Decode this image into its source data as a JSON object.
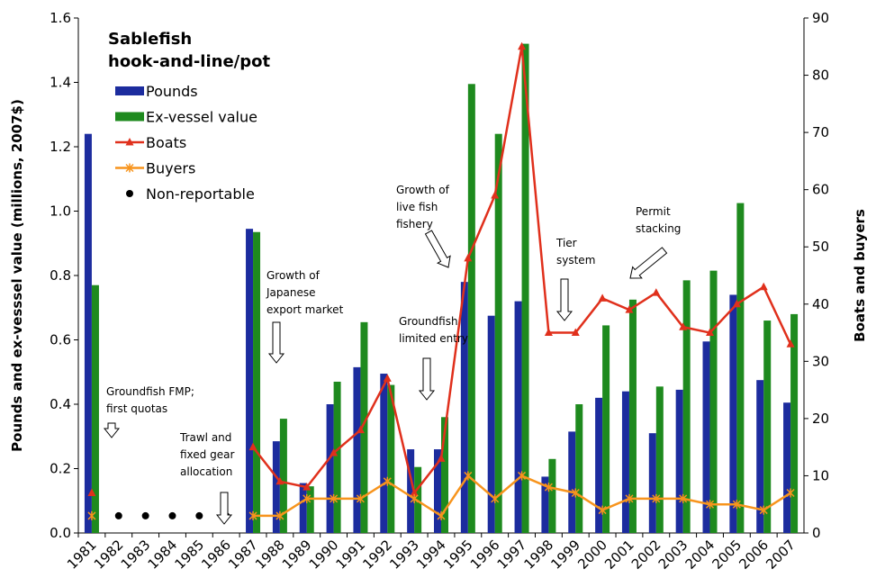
{
  "chart_data": {
    "type": "bar",
    "title": [
      "Sablefish",
      "hook-and-line/pot"
    ],
    "y_label": "Pounds and ex-vesssel value (millions, 2007$)",
    "y2_label": "Boats and buyers",
    "categories": [
      "1981",
      "1982",
      "1983",
      "1984",
      "1985",
      "1986",
      "1987",
      "1988",
      "1989",
      "1990",
      "1991",
      "1992",
      "1993",
      "1994",
      "1995",
      "1996",
      "1997",
      "1998",
      "1999",
      "2000",
      "2001",
      "2002",
      "2003",
      "2004",
      "2005",
      "2006",
      "2007"
    ],
    "series": [
      {
        "name": "Pounds",
        "type": "bar",
        "color": "#1c2c9e",
        "values": [
          1.24,
          null,
          null,
          null,
          null,
          null,
          0.945,
          0.285,
          0.155,
          0.4,
          0.515,
          0.495,
          0.26,
          0.26,
          0.78,
          0.675,
          0.72,
          0.175,
          0.315,
          0.42,
          0.44,
          0.31,
          0.445,
          0.595,
          0.74,
          0.475,
          0.405
        ]
      },
      {
        "name": "Ex-vessel value",
        "type": "bar",
        "color": "#1e8a1e",
        "values": [
          0.77,
          null,
          null,
          null,
          null,
          null,
          0.935,
          0.355,
          0.145,
          0.47,
          0.655,
          0.46,
          0.205,
          0.36,
          1.395,
          1.24,
          1.52,
          0.23,
          0.4,
          0.645,
          0.725,
          0.455,
          0.785,
          0.815,
          1.025,
          0.66,
          0.68
        ]
      },
      {
        "name": "Boats",
        "type": "line",
        "marker": "triangle",
        "axis": "y2",
        "color": "#e0301c",
        "values": [
          7,
          null,
          null,
          null,
          null,
          null,
          15,
          9,
          8,
          14,
          18,
          27,
          7,
          13,
          48,
          59,
          85,
          35,
          35,
          41,
          39,
          42,
          36,
          35,
          40,
          43,
          33
        ]
      },
      {
        "name": "Buyers",
        "type": "line",
        "marker": "asterisk",
        "axis": "y2",
        "color": "#f7941d",
        "values": [
          3,
          null,
          null,
          null,
          null,
          null,
          3,
          3,
          6,
          6,
          6,
          9,
          6,
          3,
          10,
          6,
          10,
          8,
          7,
          4,
          6,
          6,
          6,
          5,
          5,
          4,
          7
        ]
      },
      {
        "name": "Non-reportable",
        "type": "scatter",
        "marker": "circle",
        "axis": "y2",
        "color": "#000000",
        "values": [
          null,
          3,
          3,
          3,
          3,
          3,
          null,
          null,
          null,
          null,
          null,
          null,
          null,
          null,
          null,
          null,
          null,
          null,
          null,
          null,
          null,
          null,
          null,
          null,
          null,
          null,
          null
        ]
      }
    ],
    "ylim": [
      0,
      1.6
    ],
    "yticks": [
      {
        "value": 0,
        "label": "0.0"
      },
      {
        "value": 0.2,
        "label": "0.2"
      },
      {
        "value": 0.4,
        "label": "0.4"
      },
      {
        "value": 0.6,
        "label": "0.6"
      },
      {
        "value": 0.8,
        "label": "0.8"
      },
      {
        "value": 1,
        "label": "1.0"
      },
      {
        "value": 1.2,
        "label": "1.2"
      },
      {
        "value": 1.4,
        "label": "1.4"
      },
      {
        "value": 1.6,
        "label": "1.6"
      }
    ],
    "y2lim": [
      0,
      90
    ],
    "y2ticks": [
      0,
      10,
      20,
      30,
      40,
      50,
      60,
      70,
      80,
      90
    ],
    "grid": false,
    "legend": "top-left",
    "annotations": [
      [
        "Groundfish FMP;",
        "first quotas"
      ],
      [
        "Trawl and",
        "fixed gear",
        "allocation"
      ],
      [
        "Growth of",
        "Japanese",
        "export market"
      ],
      [
        "Groundfish",
        "limited entry"
      ],
      [
        "Growth of",
        "live fish",
        "fishery"
      ],
      [
        "Tier",
        "system"
      ],
      [
        "Permit",
        "stacking"
      ]
    ]
  }
}
